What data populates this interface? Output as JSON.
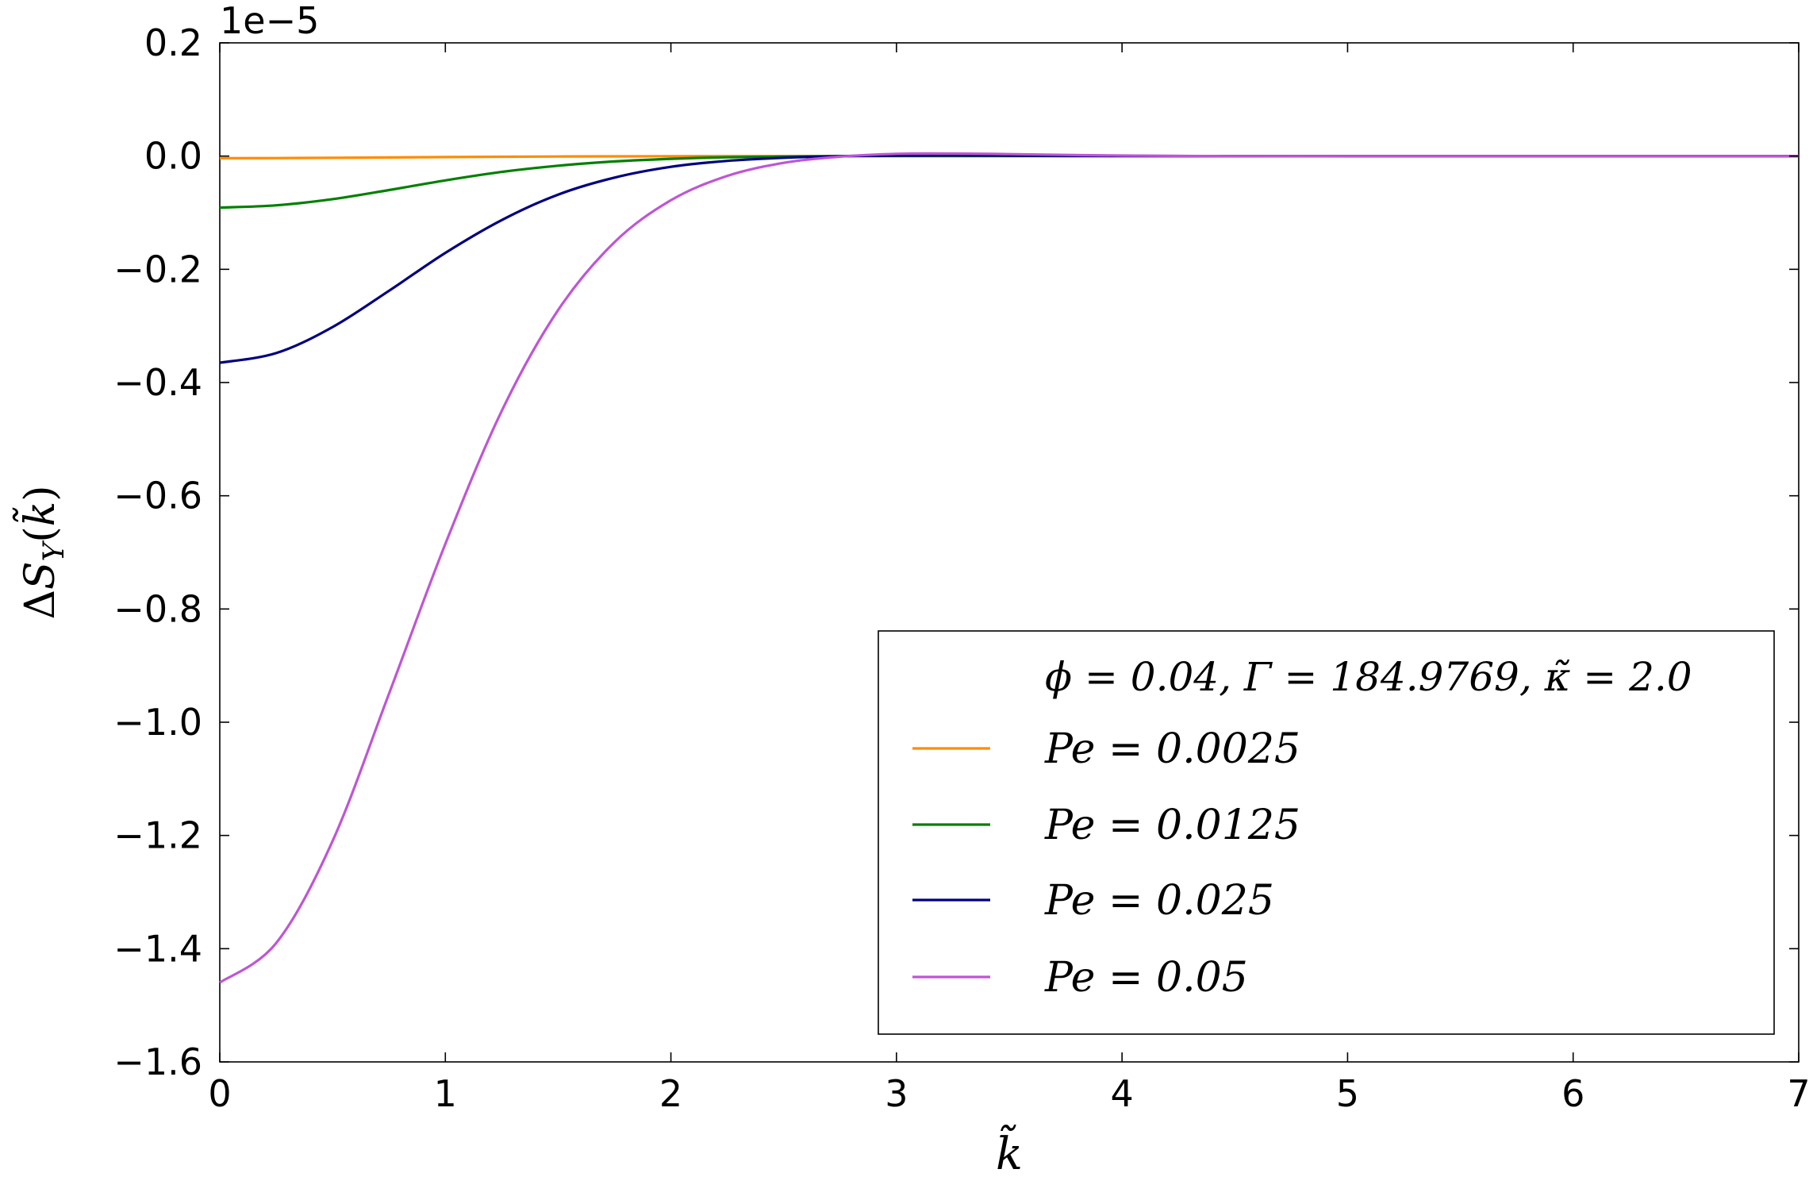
{
  "chart_data": {
    "type": "line",
    "xlabel": "k̃",
    "ylabel": "ΔS_Y(k̃)",
    "offset_label": "1e−5",
    "xlim": [
      0,
      7
    ],
    "ylim": [
      -1.6,
      0.2
    ],
    "y_scale_factor": 1e-05,
    "x_ticks": [
      0,
      1,
      2,
      3,
      4,
      5,
      6,
      7
    ],
    "y_ticks": [
      0.2,
      0.0,
      -0.2,
      -0.4,
      -0.6,
      -0.8,
      -1.0,
      -1.2,
      -1.4,
      -1.6
    ],
    "x_tick_labels": [
      "0",
      "1",
      "2",
      "3",
      "4",
      "5",
      "6",
      "7"
    ],
    "y_tick_labels": [
      "0.2",
      "0.0",
      "−0.2",
      "−0.4",
      "−0.6",
      "−0.8",
      "−1.0",
      "−1.2",
      "−1.4",
      "−1.6"
    ],
    "grid": false,
    "legend_position": "bottom-right",
    "legend_title": "ϕ = 0.04, Γ = 184.9769, κ̃ = 2.0",
    "x": [
      0,
      0.25,
      0.5,
      0.75,
      1.0,
      1.25,
      1.5,
      1.75,
      2.0,
      2.25,
      2.5,
      2.75,
      3.0,
      3.25,
      3.5,
      3.75,
      4.0,
      4.5,
      5.0,
      5.5,
      6.0,
      6.5,
      7.0
    ],
    "series": [
      {
        "name": "Pe = 0.0025",
        "color": "#ff8c00",
        "values": [
          -0.0037,
          -0.0035,
          -0.003,
          -0.0024,
          -0.0017,
          -0.0011,
          -0.0007,
          -0.0004,
          -0.0002,
          -0.0001,
          -3e-05,
          0.0,
          1e-05,
          1e-05,
          1e-05,
          0.0,
          0.0,
          0.0,
          0.0,
          0.0,
          0.0,
          0.0,
          0.0
        ]
      },
      {
        "name": "Pe = 0.0125",
        "color": "#008000",
        "values": [
          -0.091,
          -0.087,
          -0.076,
          -0.06,
          -0.043,
          -0.028,
          -0.017,
          -0.0095,
          -0.0048,
          -0.0021,
          -0.0008,
          -0.0001,
          0.0003,
          0.0003,
          0.0002,
          0.0001,
          0.0,
          0.0,
          0.0,
          0.0,
          0.0,
          0.0,
          0.0
        ]
      },
      {
        "name": "Pe = 0.025",
        "color": "#000080",
        "values": [
          -0.365,
          -0.348,
          -0.302,
          -0.238,
          -0.171,
          -0.113,
          -0.068,
          -0.038,
          -0.019,
          -0.0085,
          -0.003,
          -0.0002,
          0.001,
          0.0012,
          0.0009,
          0.0005,
          0.0002,
          0.0,
          0.0,
          0.0,
          0.0,
          0.0,
          0.0
        ]
      },
      {
        "name": "Pe = 0.05",
        "color": "#bf55d6",
        "values": [
          -1.46,
          -1.39,
          -1.21,
          -0.95,
          -0.685,
          -0.45,
          -0.272,
          -0.152,
          -0.078,
          -0.035,
          -0.012,
          -0.001,
          0.004,
          0.0045,
          0.0035,
          0.002,
          0.0009,
          0.0,
          0.0,
          0.0,
          0.0,
          0.0,
          0.0
        ]
      }
    ]
  }
}
